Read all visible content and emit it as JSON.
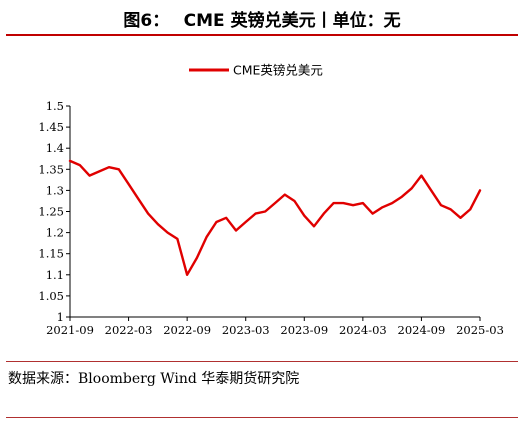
{
  "figure": {
    "title": "图6：　 CME 英镑兑美元丨单位：无",
    "source": "数据来源：Bloomberg  Wind 华泰期货研究院"
  },
  "chart_data": {
    "type": "line",
    "title": "",
    "xlabel": "",
    "ylabel": "",
    "ylim": [
      1,
      1.5
    ],
    "yticks": [
      "1",
      "1.05",
      "1.1",
      "1.15",
      "1.2",
      "1.25",
      "1.3",
      "1.35",
      "1.4",
      "1.45",
      "1.5"
    ],
    "xticks": [
      "2021-09",
      "2022-03",
      "2022-09",
      "2023-03",
      "2023-09",
      "2024-03",
      "2024-09",
      "2025-03"
    ],
    "grid": false,
    "legend": "top-center",
    "colors": {
      "series": "#e00000"
    },
    "series": [
      {
        "name": "CME英镑兑美元",
        "x": [
          "2021-09",
          "2021-10",
          "2021-11",
          "2021-12",
          "2022-01",
          "2022-02",
          "2022-03",
          "2022-04",
          "2022-05",
          "2022-06",
          "2022-07",
          "2022-08",
          "2022-09",
          "2022-10",
          "2022-11",
          "2022-12",
          "2023-01",
          "2023-02",
          "2023-03",
          "2023-04",
          "2023-05",
          "2023-06",
          "2023-07",
          "2023-08",
          "2023-09",
          "2023-10",
          "2023-11",
          "2023-12",
          "2024-01",
          "2024-02",
          "2024-03",
          "2024-04",
          "2024-05",
          "2024-06",
          "2024-07",
          "2024-08",
          "2024-09",
          "2024-10",
          "2024-11",
          "2024-12",
          "2025-01",
          "2025-02",
          "2025-03"
        ],
        "values": [
          1.37,
          1.36,
          1.335,
          1.345,
          1.355,
          1.35,
          1.315,
          1.28,
          1.245,
          1.22,
          1.2,
          1.185,
          1.1,
          1.14,
          1.19,
          1.225,
          1.235,
          1.205,
          1.225,
          1.245,
          1.25,
          1.27,
          1.29,
          1.275,
          1.24,
          1.215,
          1.245,
          1.27,
          1.27,
          1.265,
          1.27,
          1.245,
          1.26,
          1.27,
          1.285,
          1.305,
          1.335,
          1.3,
          1.265,
          1.255,
          1.235,
          1.255,
          1.3
        ]
      }
    ]
  }
}
